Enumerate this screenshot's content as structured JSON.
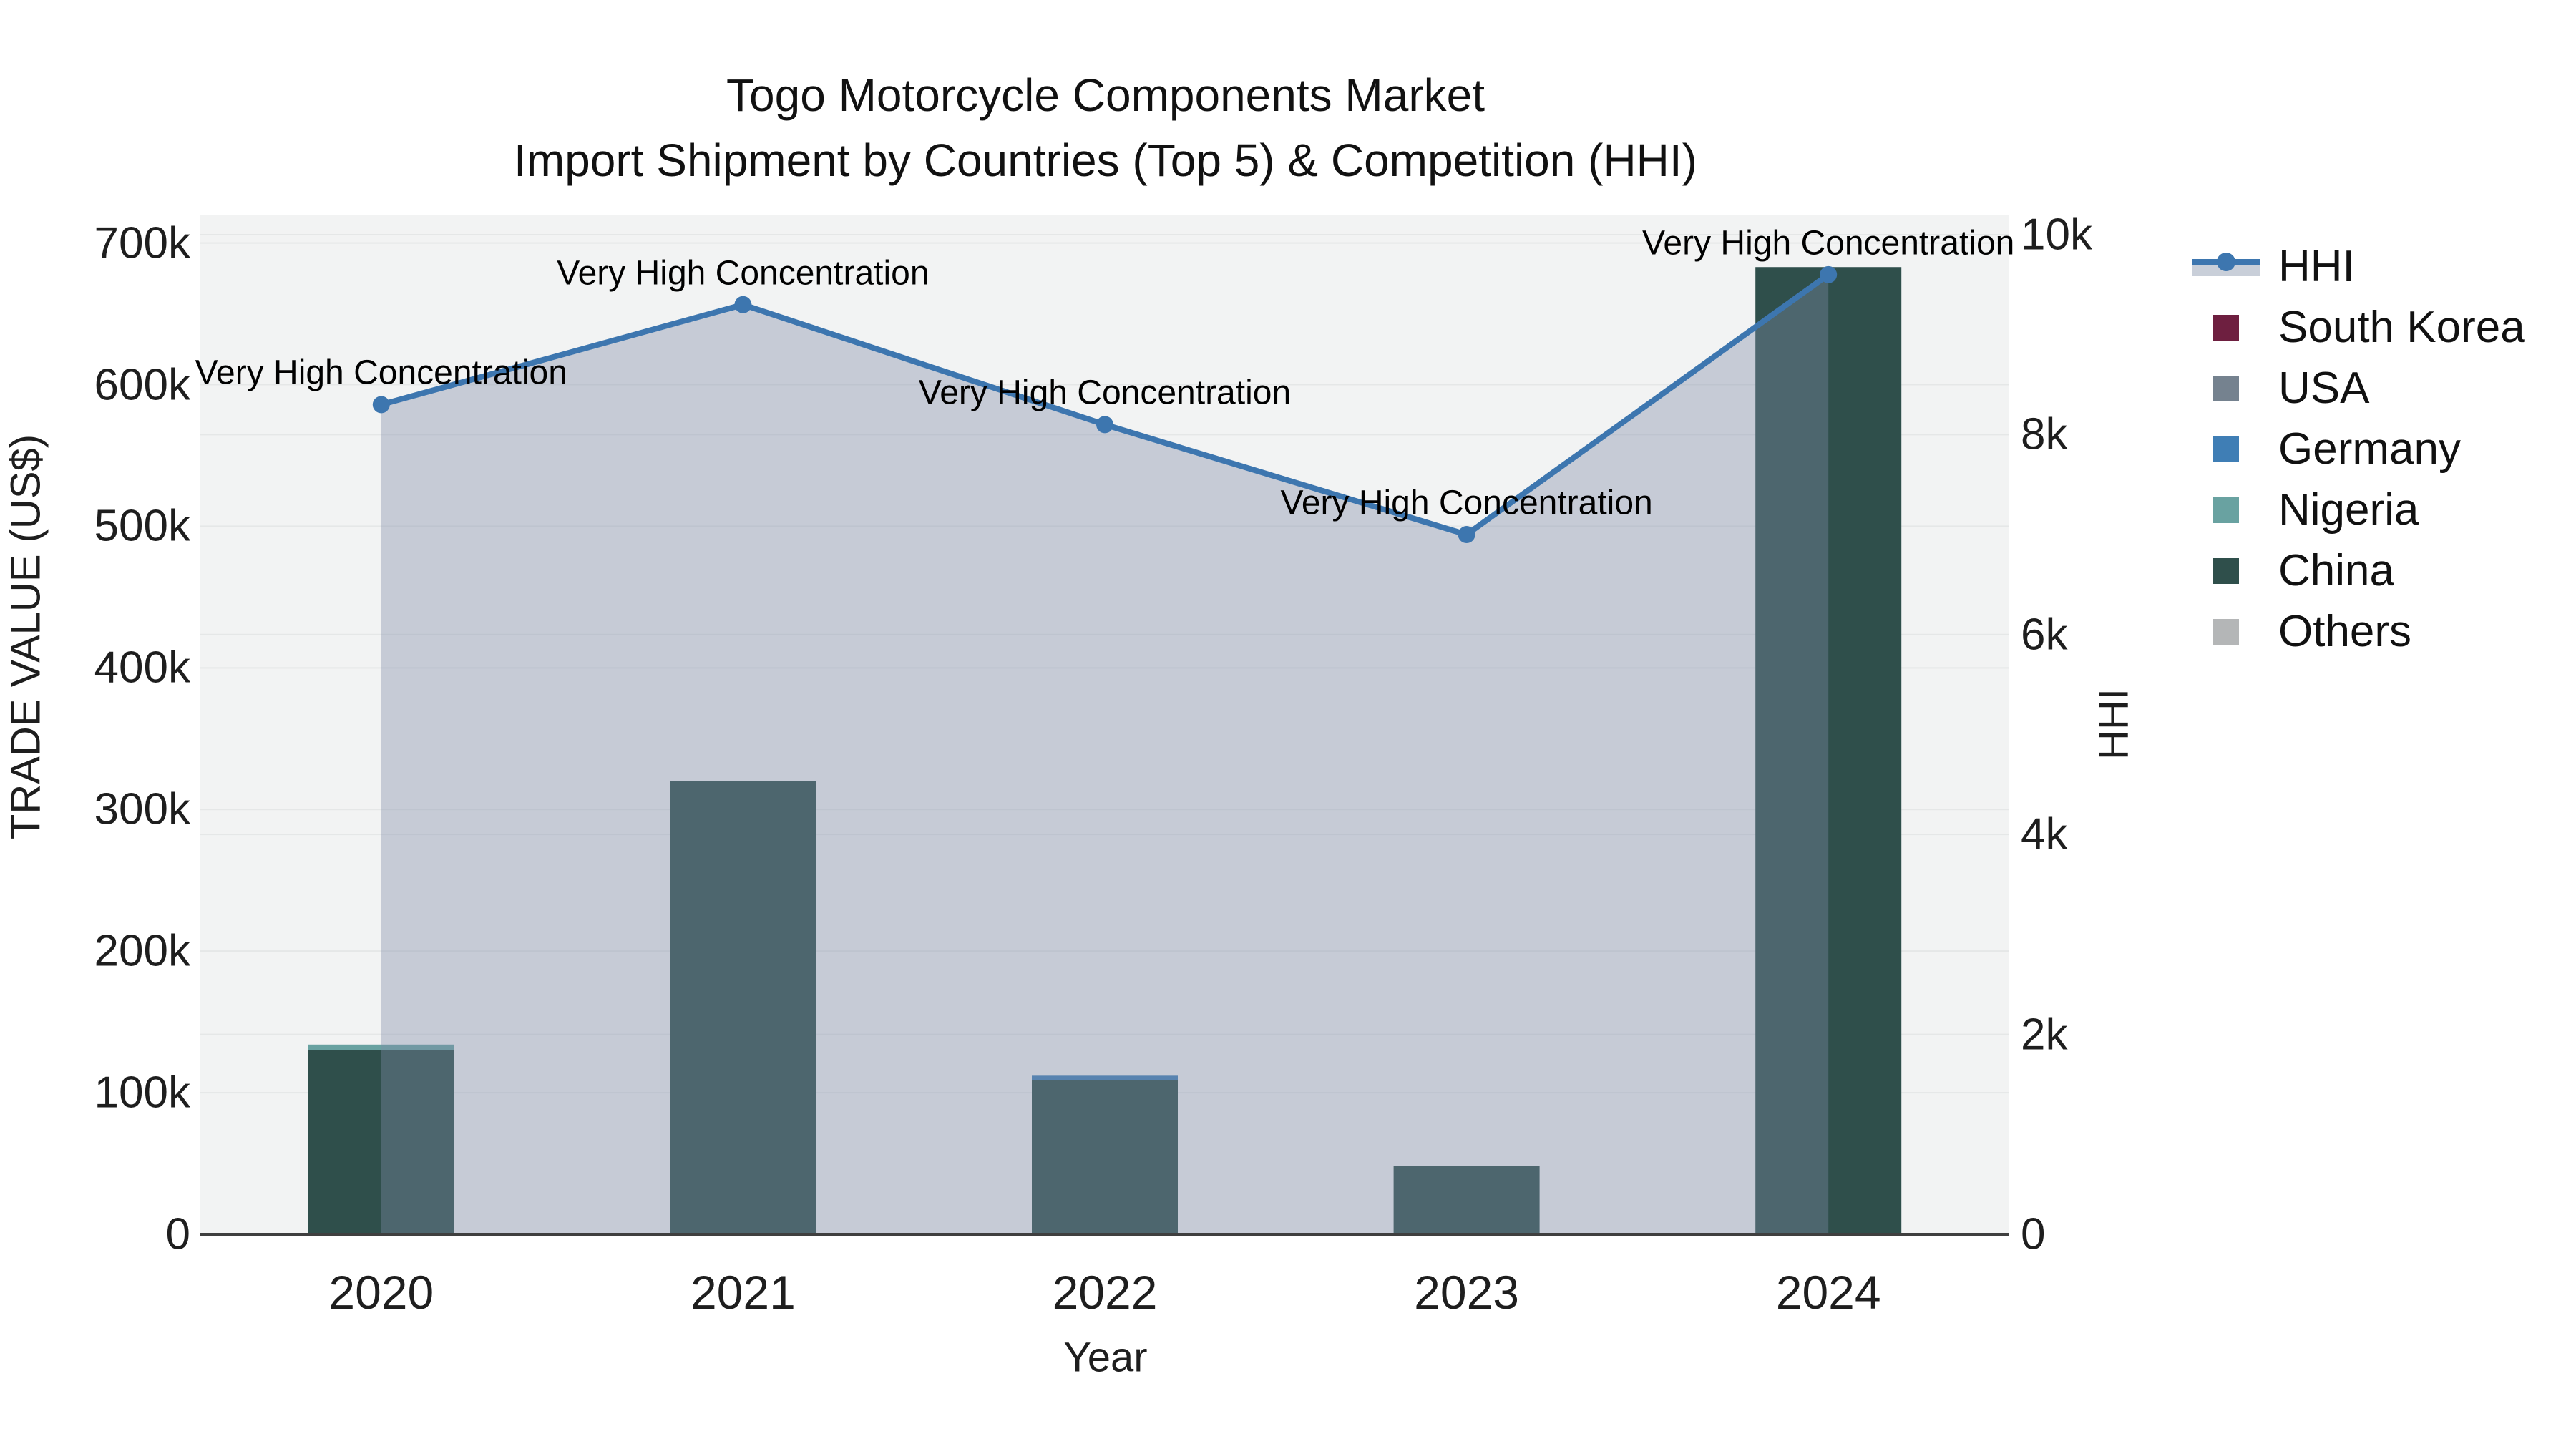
{
  "chart_data": {
    "type": "bar",
    "title": "Togo Motorcycle Components Market",
    "subtitle": "Import Shipment by Countries (Top 5) & Competition (HHI)",
    "xlabel": "Year",
    "ylabel_left": "TRADE VALUE (US$)",
    "ylabel_right": "HHI",
    "categories": [
      "2020",
      "2021",
      "2022",
      "2023",
      "2024"
    ],
    "ylim_left": [
      0,
      720000
    ],
    "ylim_right": [
      0,
      10200
    ],
    "grid": true,
    "legend_position": "right",
    "yticks_left": [
      {
        "label": "0",
        "value": 0
      },
      {
        "label": "100k",
        "value": 100000
      },
      {
        "label": "200k",
        "value": 200000
      },
      {
        "label": "300k",
        "value": 300000
      },
      {
        "label": "400k",
        "value": 400000
      },
      {
        "label": "500k",
        "value": 500000
      },
      {
        "label": "600k",
        "value": 600000
      },
      {
        "label": "700k",
        "value": 700000
      }
    ],
    "yticks_right": [
      {
        "label": "0",
        "value": 0
      },
      {
        "label": "2k",
        "value": 2000
      },
      {
        "label": "4k",
        "value": 4000
      },
      {
        "label": "6k",
        "value": 6000
      },
      {
        "label": "8k",
        "value": 8000
      },
      {
        "label": "10k",
        "value": 10000
      }
    ],
    "bar_series": [
      {
        "name": "South Korea",
        "color": "#6e1f40",
        "values": [
          0,
          0,
          0,
          0,
          0
        ]
      },
      {
        "name": "USA",
        "color": "#75828f",
        "values": [
          0,
          0,
          0,
          0,
          0
        ]
      },
      {
        "name": "Germany",
        "color": "#3f7eb5",
        "values": [
          0,
          0,
          3000,
          0,
          0
        ]
      },
      {
        "name": "Nigeria",
        "color": "#69a2a1",
        "values": [
          4000,
          0,
          0,
          0,
          0
        ]
      },
      {
        "name": "China",
        "color": "#2f4f4b",
        "values": [
          130000,
          320000,
          109000,
          48000,
          683000
        ]
      },
      {
        "name": "Others",
        "color": "#b4b6b7",
        "values": [
          0,
          0,
          0,
          0,
          0
        ]
      }
    ],
    "stack_order": [
      "China",
      "Nigeria",
      "Germany",
      "South Korea",
      "USA",
      "Others"
    ],
    "hhi": {
      "name": "HHI",
      "values": [
        8300,
        9300,
        8100,
        7000,
        9600
      ],
      "annotation_text": "Very High Concentration",
      "annotations": [
        "Very High Concentration",
        "Very High Concentration",
        "Very High Concentration",
        "Very High Concentration",
        "Very High Concentration"
      ]
    },
    "legend": [
      {
        "label": "HHI",
        "type": "line",
        "color": "#3d76af"
      },
      {
        "label": "South Korea",
        "type": "swatch",
        "color": "#6e1f40"
      },
      {
        "label": "USA",
        "type": "swatch",
        "color": "#75828f"
      },
      {
        "label": "Germany",
        "type": "swatch",
        "color": "#3f7eb5"
      },
      {
        "label": "Nigeria",
        "type": "swatch",
        "color": "#69a2a1"
      },
      {
        "label": "China",
        "type": "swatch",
        "color": "#2f4f4b"
      },
      {
        "label": "Others",
        "type": "swatch",
        "color": "#b4b6b7"
      }
    ],
    "colors": {
      "plot_bg": "#f2f3f3",
      "grid": "#e5e7e7",
      "axis_line": "#3f3f3f",
      "hhi_line": "#3d76af",
      "hhi_fill": "rgba(125,140,167,0.38)",
      "hhi_band": "#c9cfd9"
    }
  }
}
